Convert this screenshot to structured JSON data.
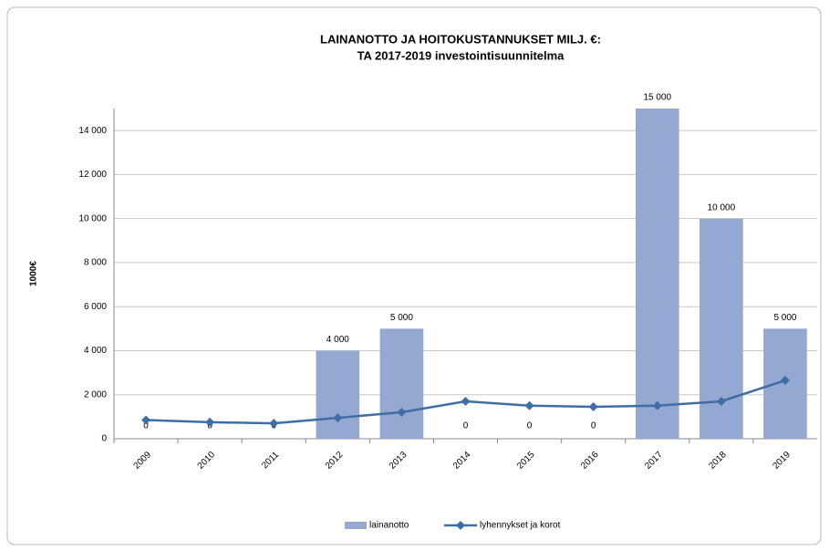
{
  "chart_data": {
    "type": "bar_line",
    "title": "LAINANOTTO JA HOITOKUSTANNUKSET MILJ. €:",
    "subtitle": "TA 2017-2019 investointisuunnitelma",
    "y_label": "1000€",
    "categories": [
      "2009",
      "2010",
      "2011",
      "2012",
      "2013",
      "2014",
      "2015",
      "2016",
      "2017",
      "2018",
      "2019"
    ],
    "series": [
      {
        "name": "lainanotto",
        "type": "bar",
        "color": "#95a8d1",
        "values": [
          0,
          0,
          0,
          4000,
          5000,
          0,
          0,
          0,
          15000,
          10000,
          5000
        ],
        "value_labels": [
          "0",
          "0",
          "0",
          "4 000",
          "5 000",
          "0",
          "0",
          "0",
          "15 000",
          "10 000",
          "5 000"
        ]
      },
      {
        "name": "lyhennykset ja korot",
        "type": "line",
        "color": "#3f6ea6",
        "values": [
          850,
          750,
          700,
          950,
          1200,
          1700,
          1500,
          1450,
          1500,
          1700,
          2650
        ]
      }
    ],
    "ylim": [
      0,
      15000
    ],
    "yticks": [
      {
        "value": 0,
        "label": "0"
      },
      {
        "value": 2000,
        "label": "2 000"
      },
      {
        "value": 4000,
        "label": "4 000"
      },
      {
        "value": 6000,
        "label": "6 000"
      },
      {
        "value": 8000,
        "label": "8 000"
      },
      {
        "value": 10000,
        "label": "10 000"
      },
      {
        "value": 12000,
        "label": "12 000"
      },
      {
        "value": 14000,
        "label": "14 000"
      }
    ],
    "grid": true
  }
}
